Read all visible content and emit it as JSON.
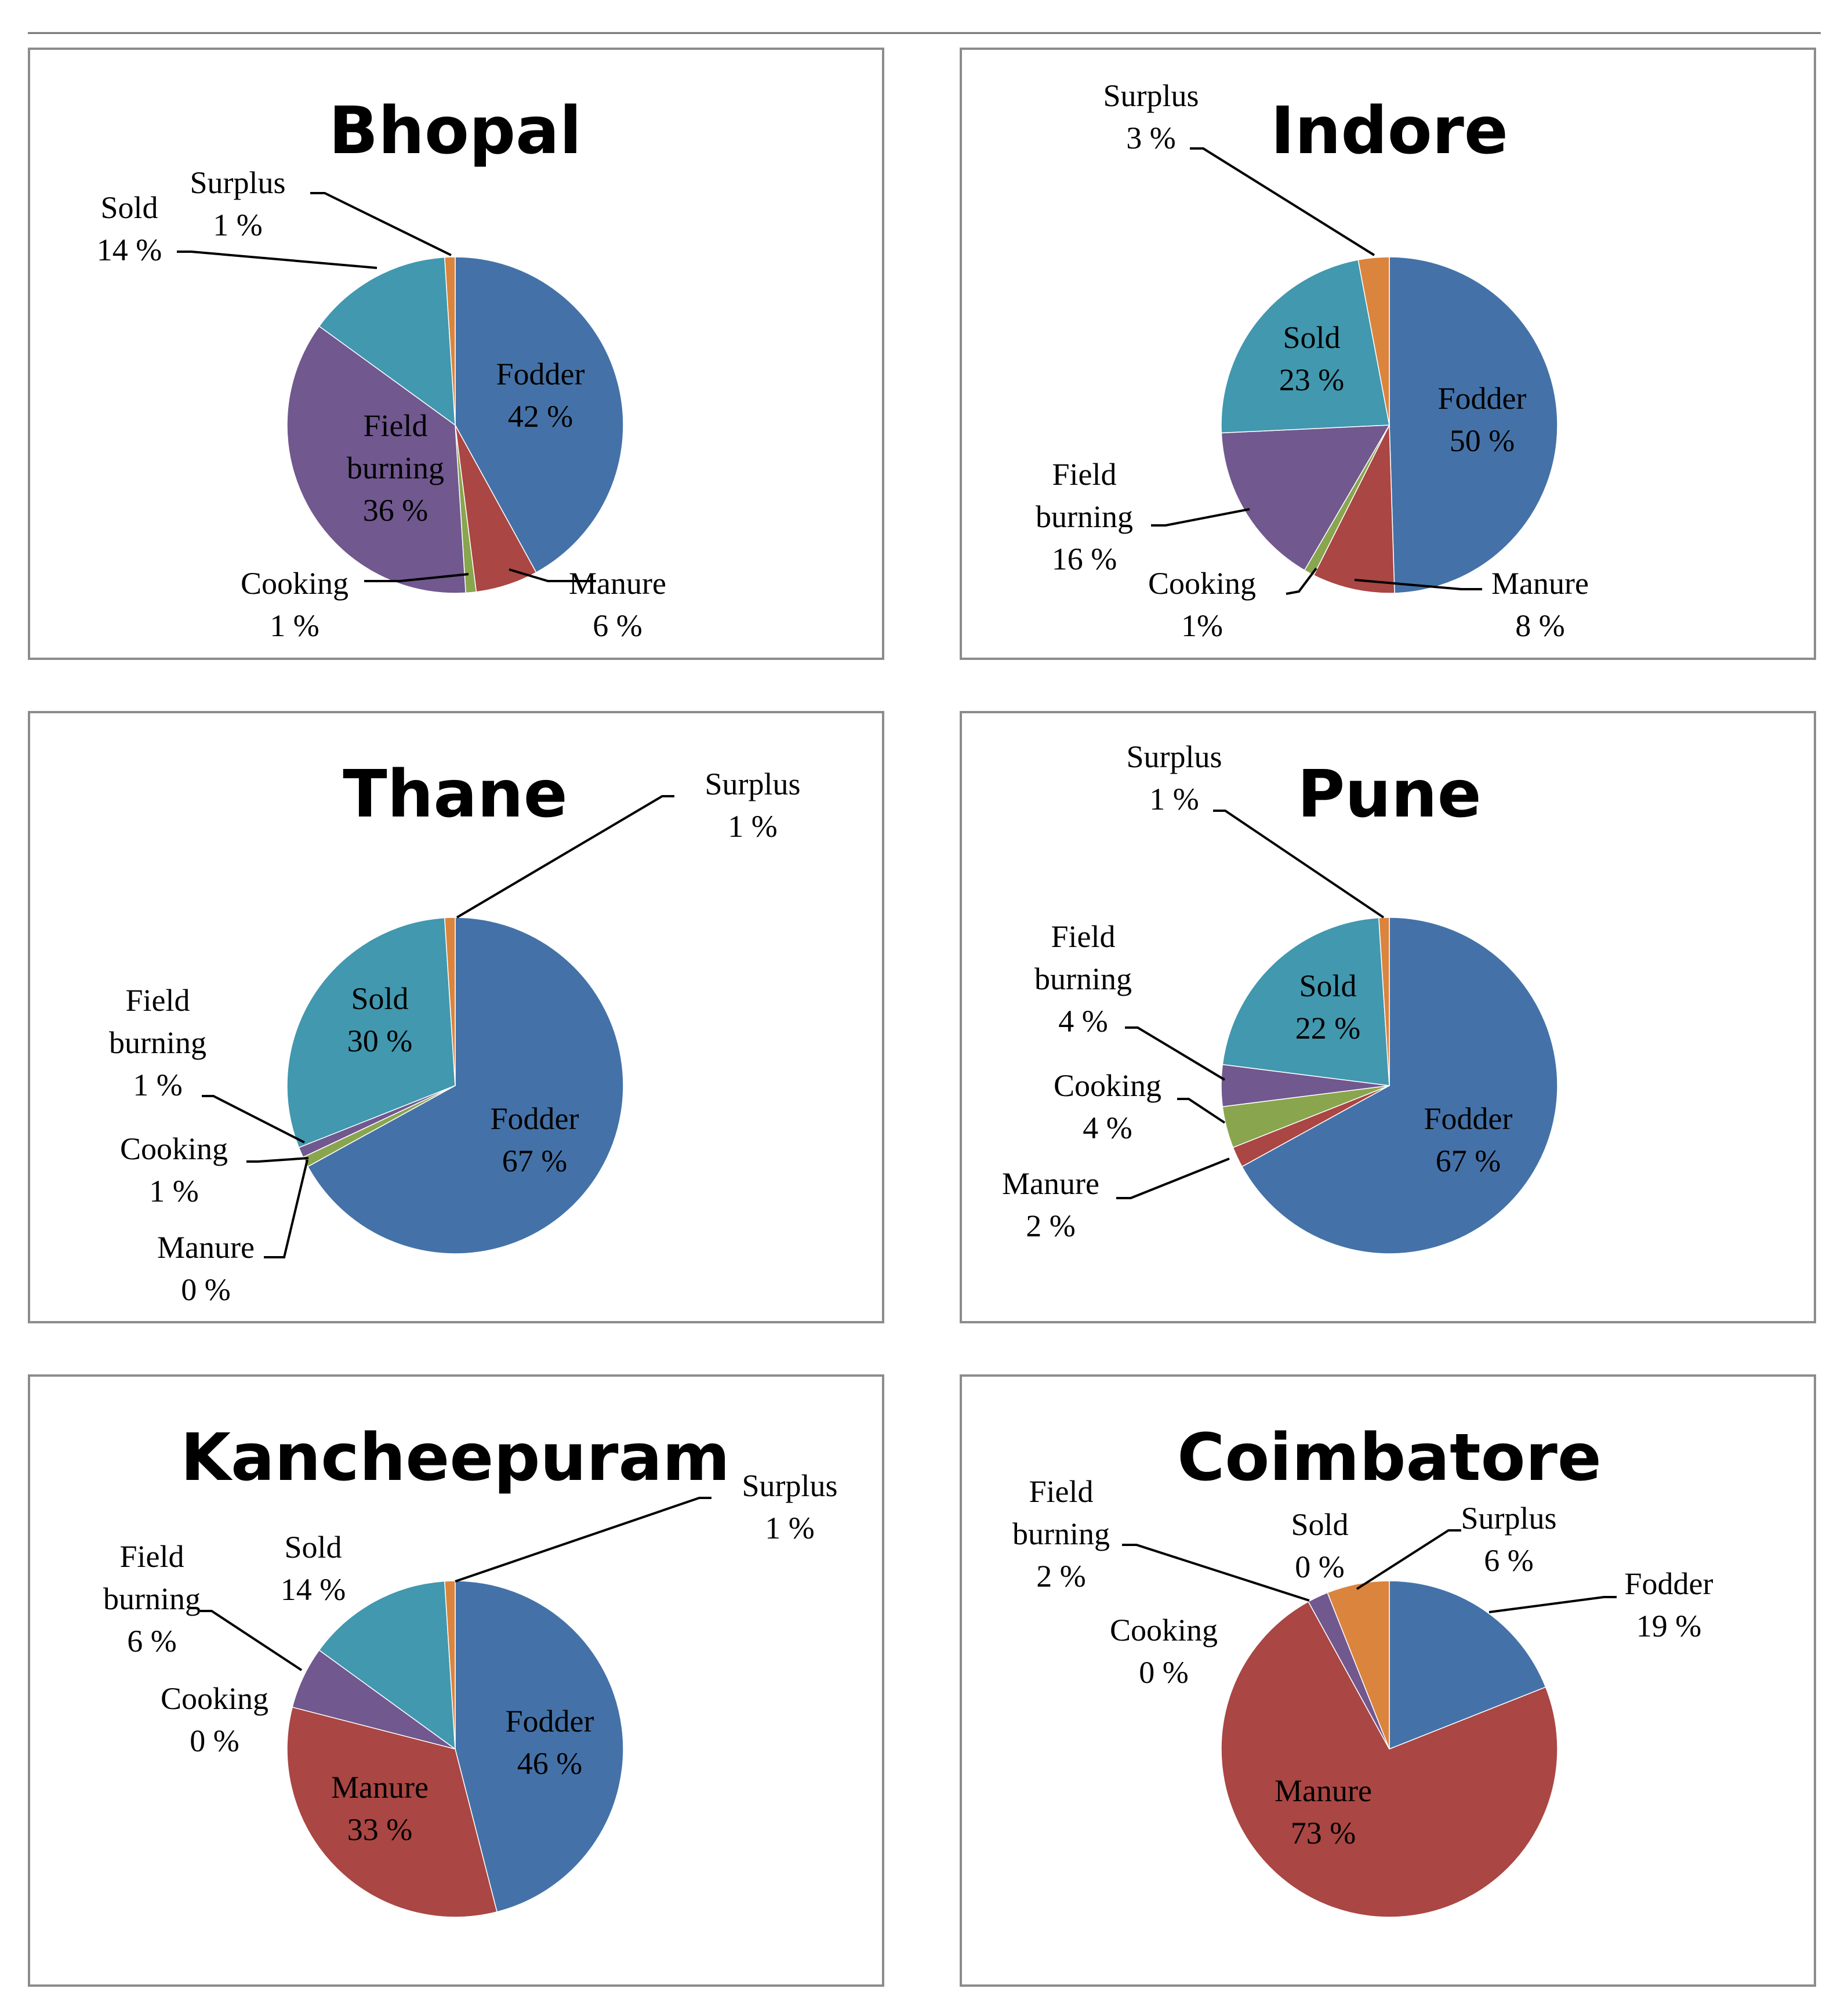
{
  "colors": {
    "Fodder": "#4472A8",
    "Manure": "#AA4643",
    "Cooking": "#89A54E",
    "Field burning": "#71588F",
    "Sold": "#4198AF",
    "Surplus": "#DB843D"
  },
  "chart_data": [
    {
      "type": "pie",
      "title": "Bhopal",
      "slices": [
        {
          "category": "Fodder",
          "value": 42,
          "label": [
            "Fodder",
            "42 %"
          ]
        },
        {
          "category": "Manure",
          "value": 6,
          "label": [
            "Manure",
            "6 %"
          ]
        },
        {
          "category": "Cooking",
          "value": 1,
          "label": [
            "Cooking",
            "1 %"
          ]
        },
        {
          "category": "Field burning",
          "value": 36,
          "label": [
            "Field",
            "burning",
            "36 %"
          ]
        },
        {
          "category": "Sold",
          "value": 14,
          "label": [
            "Sold",
            "14 %"
          ]
        },
        {
          "category": "Surplus",
          "value": 1,
          "label": [
            "Surplus",
            "1 %"
          ]
        }
      ]
    },
    {
      "type": "pie",
      "title": "Indore",
      "slices": [
        {
          "category": "Fodder",
          "value": 50,
          "label": [
            "Fodder",
            "50 %"
          ]
        },
        {
          "category": "Manure",
          "value": 8,
          "label": [
            "Manure",
            "8 %"
          ]
        },
        {
          "category": "Cooking",
          "value": 1,
          "label": [
            "Cooking",
            "1%"
          ]
        },
        {
          "category": "Field burning",
          "value": 16,
          "label": [
            "Field",
            "burning",
            "16 %"
          ]
        },
        {
          "category": "Sold",
          "value": 23,
          "label": [
            "Sold",
            "23 %"
          ]
        },
        {
          "category": "Surplus",
          "value": 3,
          "label": [
            "Surplus",
            "3 %"
          ]
        }
      ]
    },
    {
      "type": "pie",
      "title": "Thane",
      "slices": [
        {
          "category": "Fodder",
          "value": 67,
          "label": [
            "Fodder",
            "67 %"
          ]
        },
        {
          "category": "Manure",
          "value": 0,
          "label": [
            "Manure",
            "0 %"
          ]
        },
        {
          "category": "Cooking",
          "value": 1,
          "label": [
            "Cooking",
            "1 %"
          ]
        },
        {
          "category": "Field burning",
          "value": 1,
          "label": [
            "Field",
            "burning",
            "1 %"
          ]
        },
        {
          "category": "Sold",
          "value": 30,
          "label": [
            "Sold",
            "30 %"
          ]
        },
        {
          "category": "Surplus",
          "value": 1,
          "label": [
            "Surplus",
            "1 %"
          ]
        }
      ]
    },
    {
      "type": "pie",
      "title": "Pune",
      "slices": [
        {
          "category": "Fodder",
          "value": 67,
          "label": [
            "Fodder",
            "67 %"
          ]
        },
        {
          "category": "Manure",
          "value": 2,
          "label": [
            "Manure",
            "2 %"
          ]
        },
        {
          "category": "Cooking",
          "value": 4,
          "label": [
            "Cooking",
            "4 %"
          ]
        },
        {
          "category": "Field burning",
          "value": 4,
          "label": [
            "Field",
            "burning",
            "4 %"
          ]
        },
        {
          "category": "Sold",
          "value": 22,
          "label": [
            "Sold",
            "22 %"
          ]
        },
        {
          "category": "Surplus",
          "value": 1,
          "label": [
            "Surplus",
            "1 %"
          ]
        }
      ]
    },
    {
      "type": "pie",
      "title": "Kancheepuram",
      "slices": [
        {
          "category": "Fodder",
          "value": 46,
          "label": [
            "Fodder",
            "46 %"
          ]
        },
        {
          "category": "Manure",
          "value": 33,
          "label": [
            "Manure",
            "33 %"
          ]
        },
        {
          "category": "Cooking",
          "value": 0,
          "label": [
            "Cooking",
            "0 %"
          ]
        },
        {
          "category": "Field burning",
          "value": 6,
          "label": [
            "Field",
            "burning",
            "6 %"
          ]
        },
        {
          "category": "Sold",
          "value": 14,
          "label": [
            "Sold",
            "14 %"
          ]
        },
        {
          "category": "Surplus",
          "value": 1,
          "label": [
            "Surplus",
            "1 %"
          ]
        }
      ]
    },
    {
      "type": "pie",
      "title": "Coimbatore",
      "slices": [
        {
          "category": "Fodder",
          "value": 19,
          "label": [
            "Fodder",
            "19 %"
          ]
        },
        {
          "category": "Manure",
          "value": 73,
          "label": [
            "Manure",
            "73 %"
          ]
        },
        {
          "category": "Cooking",
          "value": 0,
          "label": [
            "Cooking",
            "0 %"
          ]
        },
        {
          "category": "Field burning",
          "value": 2,
          "label": [
            "Field",
            "burning",
            "2 %"
          ]
        },
        {
          "category": "Sold",
          "value": 0,
          "label": [
            "Sold",
            "0 %"
          ]
        },
        {
          "category": "Surplus",
          "value": 6,
          "label": [
            "Surplus",
            "6 %"
          ]
        }
      ]
    }
  ]
}
